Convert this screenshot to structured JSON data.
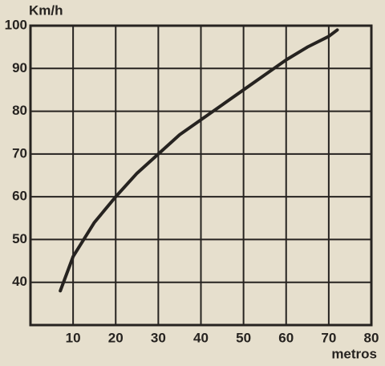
{
  "chart_data": {
    "type": "line",
    "y_label": "Km/h",
    "x_label": "metros",
    "x": [
      7,
      10,
      15,
      20,
      25,
      30,
      35,
      40,
      45,
      50,
      55,
      60,
      65,
      70,
      72
    ],
    "series": [
      {
        "name": null,
        "color": "#262320",
        "values": [
          38,
          46,
          54,
          60,
          65.5,
          70,
          74.5,
          78,
          81.5,
          85,
          88.5,
          92,
          95,
          97.5,
          99
        ]
      }
    ],
    "xlim": [
      0,
      80
    ],
    "ylim": [
      30,
      100
    ],
    "xticks": [
      10,
      20,
      30,
      40,
      50,
      60,
      70,
      80
    ],
    "yticks": [
      40,
      50,
      60,
      70,
      80,
      90,
      100
    ],
    "grid": true
  }
}
